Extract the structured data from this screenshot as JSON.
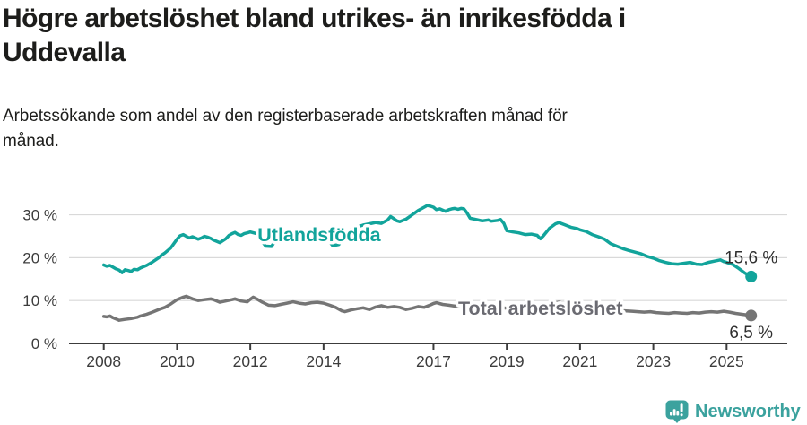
{
  "header": {
    "title": "Högre arbetslöshet bland utrikes- än inrikesfödda i\nUddevalla",
    "subtitle": "Arbetssökande som andel av den registerbaserade arbetskraften månad för\nmånad."
  },
  "chart_data": {
    "type": "line",
    "unit": "%",
    "grid": "horizontal",
    "x_axis": {
      "ticks": [
        2008,
        2010,
        2012,
        2014,
        2017,
        2019,
        2021,
        2023,
        2025
      ]
    },
    "y_axis": {
      "ticks": [
        {
          "value": 0,
          "label": "0 %"
        },
        {
          "value": 10,
          "label": "10 %"
        },
        {
          "value": 20,
          "label": "20 %"
        },
        {
          "value": 30,
          "label": "30 %"
        }
      ],
      "range": [
        0,
        33
      ]
    },
    "colors": {
      "accent_teal": "#12a49b",
      "line_gray": "#757575",
      "grid": "#d9d9d9",
      "axis": "#3c3c3c"
    },
    "series": [
      {
        "name": "Utlandsfödda",
        "color": "#12a49b",
        "label_color": "#12a49b",
        "end_label": "15,6 %",
        "end_value": 15.6,
        "end_label_side": "above",
        "label_pos": {
          "year": 2013.88,
          "value": 25.3
        },
        "points": [
          [
            2008.0,
            18.3
          ],
          [
            2008.08,
            18.0
          ],
          [
            2008.17,
            18.2
          ],
          [
            2008.25,
            17.8
          ],
          [
            2008.33,
            17.4
          ],
          [
            2008.42,
            17.1
          ],
          [
            2008.5,
            16.5
          ],
          [
            2008.58,
            17.2
          ],
          [
            2008.67,
            17.0
          ],
          [
            2008.75,
            16.8
          ],
          [
            2008.83,
            17.3
          ],
          [
            2008.92,
            17.2
          ],
          [
            2009.0,
            17.6
          ],
          [
            2009.17,
            18.2
          ],
          [
            2009.33,
            19.0
          ],
          [
            2009.5,
            20.0
          ],
          [
            2009.58,
            20.6
          ],
          [
            2009.67,
            21.1
          ],
          [
            2009.83,
            22.3
          ],
          [
            2010.0,
            24.3
          ],
          [
            2010.08,
            25.1
          ],
          [
            2010.17,
            25.4
          ],
          [
            2010.33,
            24.6
          ],
          [
            2010.42,
            24.9
          ],
          [
            2010.5,
            24.6
          ],
          [
            2010.58,
            24.3
          ],
          [
            2010.67,
            24.6
          ],
          [
            2010.75,
            25.0
          ],
          [
            2010.83,
            24.8
          ],
          [
            2010.92,
            24.5
          ],
          [
            2011.0,
            24.1
          ],
          [
            2011.17,
            23.5
          ],
          [
            2011.33,
            24.4
          ],
          [
            2011.42,
            25.2
          ],
          [
            2011.5,
            25.6
          ],
          [
            2011.58,
            25.9
          ],
          [
            2011.67,
            25.4
          ],
          [
            2011.75,
            25.2
          ],
          [
            2011.83,
            25.6
          ],
          [
            2011.92,
            25.8
          ],
          [
            2012.0,
            26.0
          ],
          [
            2012.17,
            25.6
          ],
          [
            2012.25,
            24.6
          ],
          [
            2012.42,
            22.7
          ],
          [
            2012.58,
            22.6
          ],
          [
            2012.75,
            24.8
          ],
          [
            2012.92,
            25.4
          ],
          [
            2013.08,
            25.7
          ],
          [
            2013.25,
            25.9
          ],
          [
            2013.42,
            25.7
          ],
          [
            2013.58,
            26.1
          ],
          [
            2013.75,
            26.3
          ],
          [
            2013.92,
            26.1
          ],
          [
            2014.08,
            24.6
          ],
          [
            2014.25,
            22.8
          ],
          [
            2014.42,
            23.1
          ],
          [
            2014.58,
            25.2
          ],
          [
            2014.75,
            26.6
          ],
          [
            2014.92,
            27.2
          ],
          [
            2015.08,
            27.6
          ],
          [
            2015.25,
            27.9
          ],
          [
            2015.42,
            28.2
          ],
          [
            2015.58,
            28.0
          ],
          [
            2015.75,
            28.8
          ],
          [
            2015.83,
            29.6
          ],
          [
            2015.92,
            29.1
          ],
          [
            2016.0,
            28.6
          ],
          [
            2016.08,
            28.4
          ],
          [
            2016.25,
            29.0
          ],
          [
            2016.42,
            30.0
          ],
          [
            2016.58,
            31.0
          ],
          [
            2016.75,
            31.8
          ],
          [
            2016.83,
            32.2
          ],
          [
            2016.92,
            32.0
          ],
          [
            2017.0,
            31.8
          ],
          [
            2017.08,
            31.2
          ],
          [
            2017.17,
            31.4
          ],
          [
            2017.33,
            30.8
          ],
          [
            2017.42,
            31.2
          ],
          [
            2017.5,
            31.4
          ],
          [
            2017.58,
            31.5
          ],
          [
            2017.67,
            31.3
          ],
          [
            2017.75,
            31.5
          ],
          [
            2017.83,
            31.4
          ],
          [
            2017.92,
            30.4
          ],
          [
            2018.0,
            29.2
          ],
          [
            2018.17,
            28.9
          ],
          [
            2018.33,
            28.6
          ],
          [
            2018.5,
            28.8
          ],
          [
            2018.58,
            28.5
          ],
          [
            2018.75,
            28.7
          ],
          [
            2018.83,
            28.9
          ],
          [
            2018.92,
            28.0
          ],
          [
            2019.0,
            26.3
          ],
          [
            2019.17,
            26.0
          ],
          [
            2019.33,
            25.8
          ],
          [
            2019.5,
            25.4
          ],
          [
            2019.67,
            25.5
          ],
          [
            2019.83,
            25.2
          ],
          [
            2019.92,
            24.4
          ],
          [
            2020.0,
            25.1
          ],
          [
            2020.17,
            26.9
          ],
          [
            2020.33,
            27.9
          ],
          [
            2020.42,
            28.2
          ],
          [
            2020.58,
            27.7
          ],
          [
            2020.75,
            27.1
          ],
          [
            2020.92,
            26.8
          ],
          [
            2021.0,
            26.5
          ],
          [
            2021.17,
            26.1
          ],
          [
            2021.33,
            25.4
          ],
          [
            2021.5,
            24.9
          ],
          [
            2021.67,
            24.3
          ],
          [
            2021.83,
            23.3
          ],
          [
            2022.0,
            22.7
          ],
          [
            2022.17,
            22.1
          ],
          [
            2022.33,
            21.7
          ],
          [
            2022.5,
            21.3
          ],
          [
            2022.67,
            20.9
          ],
          [
            2022.83,
            20.3
          ],
          [
            2023.0,
            19.9
          ],
          [
            2023.17,
            19.3
          ],
          [
            2023.33,
            18.9
          ],
          [
            2023.5,
            18.6
          ],
          [
            2023.67,
            18.5
          ],
          [
            2023.83,
            18.7
          ],
          [
            2024.0,
            18.9
          ],
          [
            2024.17,
            18.5
          ],
          [
            2024.33,
            18.4
          ],
          [
            2024.5,
            18.9
          ],
          [
            2024.67,
            19.2
          ],
          [
            2024.83,
            19.5
          ],
          [
            2024.92,
            19.1
          ],
          [
            2025.0,
            18.9
          ],
          [
            2025.17,
            18.4
          ],
          [
            2025.33,
            17.5
          ],
          [
            2025.5,
            16.4
          ],
          [
            2025.67,
            15.6
          ]
        ]
      },
      {
        "name": "Total arbetslöshet",
        "color": "#757575",
        "label_color": "#6b6b72",
        "end_label": "6,5 %",
        "end_value": 6.5,
        "end_label_side": "below",
        "label_pos": {
          "year": 2019.92,
          "value": 8.2
        },
        "points": [
          [
            2008.0,
            6.3
          ],
          [
            2008.08,
            6.2
          ],
          [
            2008.17,
            6.4
          ],
          [
            2008.25,
            6.0
          ],
          [
            2008.33,
            5.7
          ],
          [
            2008.42,
            5.4
          ],
          [
            2008.58,
            5.6
          ],
          [
            2008.75,
            5.8
          ],
          [
            2008.92,
            6.1
          ],
          [
            2009.0,
            6.4
          ],
          [
            2009.17,
            6.8
          ],
          [
            2009.33,
            7.3
          ],
          [
            2009.5,
            7.9
          ],
          [
            2009.67,
            8.4
          ],
          [
            2009.83,
            9.2
          ],
          [
            2010.0,
            10.2
          ],
          [
            2010.17,
            10.8
          ],
          [
            2010.25,
            11.0
          ],
          [
            2010.42,
            10.4
          ],
          [
            2010.58,
            10.0
          ],
          [
            2010.75,
            10.2
          ],
          [
            2010.92,
            10.4
          ],
          [
            2011.0,
            10.2
          ],
          [
            2011.17,
            9.6
          ],
          [
            2011.33,
            9.9
          ],
          [
            2011.5,
            10.2
          ],
          [
            2011.58,
            10.4
          ],
          [
            2011.75,
            9.9
          ],
          [
            2011.92,
            9.7
          ],
          [
            2012.0,
            10.3
          ],
          [
            2012.08,
            10.8
          ],
          [
            2012.17,
            10.4
          ],
          [
            2012.33,
            9.6
          ],
          [
            2012.5,
            8.9
          ],
          [
            2012.67,
            8.8
          ],
          [
            2012.83,
            9.1
          ],
          [
            2013.0,
            9.4
          ],
          [
            2013.17,
            9.7
          ],
          [
            2013.33,
            9.4
          ],
          [
            2013.5,
            9.2
          ],
          [
            2013.67,
            9.5
          ],
          [
            2013.83,
            9.6
          ],
          [
            2014.0,
            9.4
          ],
          [
            2014.17,
            8.9
          ],
          [
            2014.33,
            8.4
          ],
          [
            2014.5,
            7.6
          ],
          [
            2014.58,
            7.4
          ],
          [
            2014.75,
            7.8
          ],
          [
            2014.92,
            8.1
          ],
          [
            2015.08,
            8.3
          ],
          [
            2015.25,
            7.9
          ],
          [
            2015.42,
            8.5
          ],
          [
            2015.58,
            8.8
          ],
          [
            2015.75,
            8.4
          ],
          [
            2015.92,
            8.6
          ],
          [
            2016.08,
            8.4
          ],
          [
            2016.25,
            7.9
          ],
          [
            2016.42,
            8.2
          ],
          [
            2016.58,
            8.6
          ],
          [
            2016.75,
            8.4
          ],
          [
            2016.92,
            9.0
          ],
          [
            2017.0,
            9.3
          ],
          [
            2017.08,
            9.5
          ],
          [
            2017.25,
            9.1
          ],
          [
            2017.42,
            8.9
          ],
          [
            2017.58,
            8.7
          ],
          [
            2017.75,
            8.9
          ],
          [
            2017.92,
            8.6
          ],
          [
            2018.08,
            8.4
          ],
          [
            2018.25,
            8.2
          ],
          [
            2018.42,
            8.5
          ],
          [
            2018.58,
            8.3
          ],
          [
            2018.75,
            8.1
          ],
          [
            2018.92,
            8.3
          ],
          [
            2019.08,
            8.1
          ],
          [
            2019.25,
            8.0
          ],
          [
            2019.42,
            8.2
          ],
          [
            2019.58,
            8.0
          ],
          [
            2019.75,
            8.1
          ],
          [
            2019.92,
            8.3
          ],
          [
            2020.08,
            8.8
          ],
          [
            2020.25,
            9.4
          ],
          [
            2020.42,
            9.6
          ],
          [
            2020.58,
            9.3
          ],
          [
            2020.75,
            9.0
          ],
          [
            2020.92,
            8.8
          ],
          [
            2021.08,
            8.6
          ],
          [
            2021.25,
            8.4
          ],
          [
            2021.42,
            8.2
          ],
          [
            2021.58,
            8.0
          ],
          [
            2021.75,
            7.9
          ],
          [
            2021.92,
            7.8
          ],
          [
            2022.08,
            7.7
          ],
          [
            2022.25,
            7.6
          ],
          [
            2022.42,
            7.5
          ],
          [
            2022.58,
            7.4
          ],
          [
            2022.75,
            7.3
          ],
          [
            2022.92,
            7.4
          ],
          [
            2023.08,
            7.2
          ],
          [
            2023.25,
            7.1
          ],
          [
            2023.42,
            7.0
          ],
          [
            2023.58,
            7.2
          ],
          [
            2023.75,
            7.1
          ],
          [
            2023.92,
            7.0
          ],
          [
            2024.08,
            7.2
          ],
          [
            2024.25,
            7.1
          ],
          [
            2024.42,
            7.3
          ],
          [
            2024.58,
            7.4
          ],
          [
            2024.75,
            7.3
          ],
          [
            2024.92,
            7.5
          ],
          [
            2025.08,
            7.3
          ],
          [
            2025.25,
            7.0
          ],
          [
            2025.42,
            6.8
          ],
          [
            2025.58,
            6.6
          ],
          [
            2025.67,
            6.5
          ]
        ]
      }
    ]
  },
  "footer": {
    "brand": "Newsworthy",
    "logo_icon": "bar-chart-exclamation-pin",
    "brand_color": "#3ba29e"
  }
}
